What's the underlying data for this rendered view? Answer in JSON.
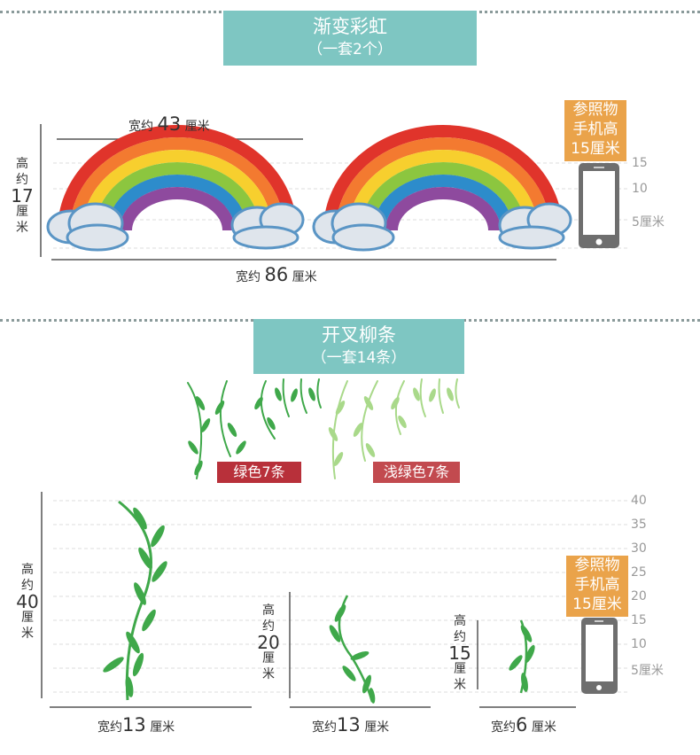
{
  "rainbow_section": {
    "title": "渐变彩虹",
    "subtitle": "（一套2个）",
    "width_label_top": [
      "宽约",
      "43",
      "厘米"
    ],
    "height_label": [
      "高",
      "约",
      "17",
      "厘",
      "米"
    ],
    "width_label_bottom": [
      "宽约",
      "86",
      "厘米"
    ],
    "reference_box": [
      "参照物",
      "手机高",
      "15厘米"
    ],
    "scale_ticks": [
      "15",
      "10",
      "5厘米"
    ]
  },
  "willow_section": {
    "title": "开叉柳条",
    "subtitle": "（一套14条）",
    "tag_green": "绿色7条",
    "tag_light_green": "浅绿色7条",
    "reference_box": [
      "参照物",
      "手机高",
      "15厘米"
    ],
    "scale_ticks": [
      "40",
      "35",
      "30",
      "25",
      "20",
      "15",
      "10",
      "5厘米"
    ],
    "items": [
      {
        "height": [
          "高",
          "约",
          "40",
          "厘",
          "米"
        ],
        "width": [
          "宽约",
          "13",
          "厘米"
        ]
      },
      {
        "height": [
          "高",
          "约",
          "20",
          "厘",
          "米"
        ],
        "width": [
          "宽约",
          "13",
          "厘米"
        ]
      },
      {
        "height": [
          "高",
          "约",
          "15",
          "厘",
          "米"
        ],
        "width": [
          "宽约",
          "6",
          "厘米"
        ]
      }
    ]
  },
  "colors": {
    "banner": "#7ec6c2",
    "reference_orange": "#eaa34a",
    "tag_red": "#b8303a",
    "tag_light": "#c24a4f",
    "willow_green": "#3fa84a",
    "willow_light": "#a9d98a"
  }
}
